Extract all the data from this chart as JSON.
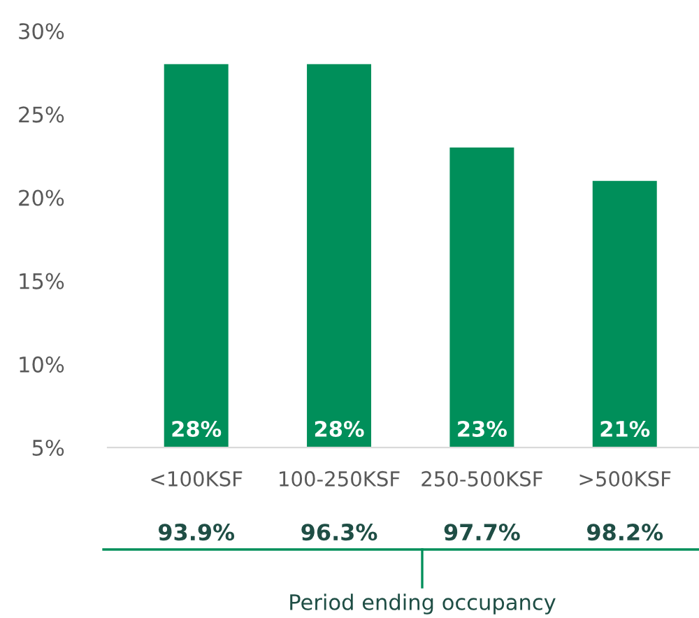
{
  "chart_data": {
    "type": "bar",
    "categories": [
      "<100KSF",
      "100-250KSF",
      "250-500KSF",
      ">500KSF"
    ],
    "values": [
      28,
      28,
      23,
      21
    ],
    "color": "#008f5a",
    "ylim": [
      5,
      30
    ],
    "yticks": [
      {
        "value": 5,
        "label": "5%"
      },
      {
        "value": 10,
        "label": "10%"
      },
      {
        "value": 15,
        "label": "15%"
      },
      {
        "value": 20,
        "label": "20%"
      },
      {
        "value": 25,
        "label": "25%"
      },
      {
        "value": 30,
        "label": "30%"
      }
    ],
    "value_labels": [
      "28%",
      "28%",
      "23%",
      "21%"
    ],
    "annotations": [
      "93.9%",
      "96.3%",
      "97.7%",
      "98.2%",
      "Period ending occupancy"
    ],
    "grid": false,
    "legend": false
  }
}
